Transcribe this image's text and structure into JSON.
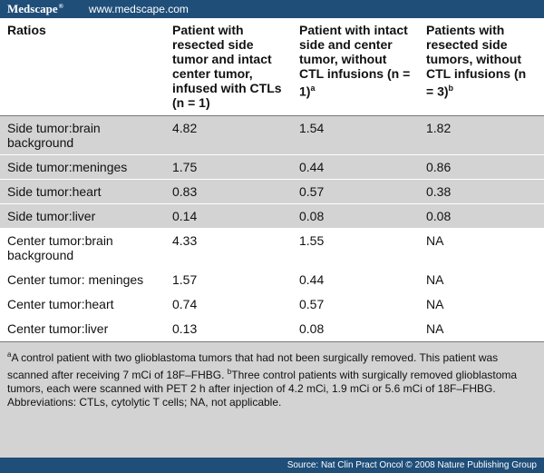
{
  "header": {
    "brand": "Medscape",
    "brand_mark": "®",
    "site": "www.medscape.com"
  },
  "table": {
    "col0": "Ratios",
    "col1": "Patient with resected side tumor and intact center tumor, infused with CTLs (n = 1)",
    "col2_main": "Patient with intact side and center tumor, without CTL infusions (n = 1)",
    "col2_sup": "a",
    "col3_main": "Patients with resected side tumors, without CTL infusions (n = 3)",
    "col3_sup": "b",
    "rows": [
      {
        "label": "Side tumor:brain background",
        "v1": "4.82",
        "v2": "1.54",
        "v3": "1.82"
      },
      {
        "label": "Side tumor:meninges",
        "v1": "1.75",
        "v2": "0.44",
        "v3": "0.86"
      },
      {
        "label": "Side tumor:heart",
        "v1": "0.83",
        "v2": "0.57",
        "v3": "0.38"
      },
      {
        "label": "Side tumor:liver",
        "v1": "0.14",
        "v2": "0.08",
        "v3": "0.08"
      },
      {
        "label": "Center tumor:brain background",
        "v1": "4.33",
        "v2": "1.55",
        "v3": "NA"
      },
      {
        "label": "Center tumor: meninges",
        "v1": "1.57",
        "v2": "0.44",
        "v3": "NA"
      },
      {
        "label": "Center tumor:heart",
        "v1": "0.74",
        "v2": "0.57",
        "v3": "NA"
      },
      {
        "label": "Center tumor:liver",
        "v1": "0.13",
        "v2": "0.08",
        "v3": "NA"
      }
    ]
  },
  "footnote": {
    "a_mark": "a",
    "a_text": "A control patient with two glioblastoma tumors that had not been surgically removed. This patient was scanned after receiving 7 mCi of 18F–FHBG. ",
    "b_mark": "b",
    "b_text": "Three control patients with surgically removed glioblastoma tumors, each were scanned with PET 2 h after injection of 4.2 mCi, 1.9 mCi or 5.6 mCi of 18F–FHBG. Abbreviations: CTLs, cytolytic T cells; NA, not applicable."
  },
  "source": "Source: Nat Clin Pract Oncol © 2008 Nature Publishing Group"
}
